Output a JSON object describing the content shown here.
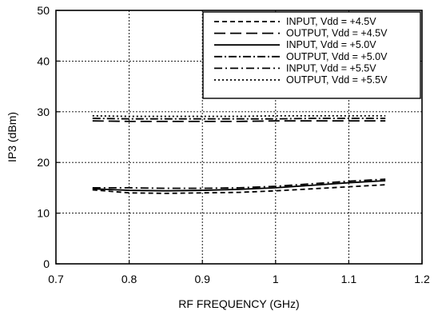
{
  "chart_data": {
    "type": "line",
    "title": "",
    "xlabel": "RF FREQUENCY (GHz)",
    "ylabel": "IP3 (dBm)",
    "xlim": [
      0.7,
      1.2
    ],
    "ylim": [
      0,
      50
    ],
    "xticks": [
      0.7,
      0.8,
      0.9,
      1.0,
      1.1,
      1.2
    ],
    "xtick_labels": [
      "0.7",
      "0.8",
      "0.9",
      "1",
      "1.1",
      "1.2"
    ],
    "yticks": [
      0,
      10,
      20,
      30,
      40,
      50
    ],
    "ytick_labels": [
      "0",
      "10",
      "20",
      "30",
      "40",
      "50"
    ],
    "grid": true,
    "grid_style": "dotted",
    "legend_position": "top-right",
    "x": [
      0.75,
      0.8,
      0.85,
      0.9,
      0.95,
      1.0,
      1.05,
      1.1,
      1.15
    ],
    "series": [
      {
        "name": "INPUT, Vdd = +4.5V",
        "dash": "6,4",
        "values": [
          14.6,
          14.0,
          13.9,
          14.0,
          14.1,
          14.4,
          14.8,
          15.2,
          15.6
        ]
      },
      {
        "name": "OUTPUT, Vdd = +4.5V",
        "dash": "14,6",
        "values": [
          28.2,
          28.1,
          28.1,
          28.1,
          28.1,
          28.2,
          28.2,
          28.2,
          28.2
        ]
      },
      {
        "name": "INPUT, Vdd = +5.0V",
        "dash": "",
        "values": [
          14.8,
          14.5,
          14.4,
          14.5,
          14.7,
          15.0,
          15.5,
          16.0,
          16.4
        ]
      },
      {
        "name": "OUTPUT, Vdd = +5.0V",
        "dash": "10,3,2,3",
        "values": [
          28.7,
          28.6,
          28.6,
          28.6,
          28.6,
          28.6,
          28.7,
          28.7,
          28.7
        ]
      },
      {
        "name": "INPUT, Vdd = +5.5V",
        "dash": "10,4,2,4",
        "values": [
          15.0,
          15.0,
          14.9,
          14.9,
          15.0,
          15.3,
          15.8,
          16.3,
          16.7
        ]
      },
      {
        "name": "OUTPUT, Vdd = +5.5V",
        "dash": "2,3",
        "values": [
          29.2,
          29.1,
          29.1,
          29.1,
          29.1,
          29.2,
          29.2,
          29.2,
          29.2
        ]
      }
    ]
  }
}
